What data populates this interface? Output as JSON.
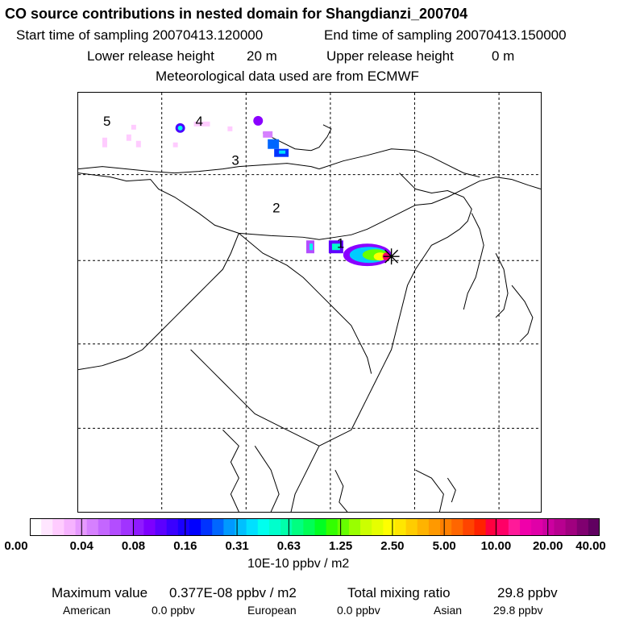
{
  "header": {
    "title": "CO  source contributions in nested domain for Shangdianzi_200704",
    "start_label": "Start time of sampling 20070413.120000",
    "end_label": "End time of sampling 20070413.150000",
    "lower_label": "Lower release height",
    "lower_value": "20 m",
    "upper_label": "Upper release height",
    "upper_value": "0 m",
    "met_label": "Meteorological data used are from ECMWF"
  },
  "map": {
    "region_labels": [
      "1",
      "2",
      "3",
      "4",
      "5"
    ],
    "receptor_marker": "star-cross"
  },
  "colorbar": {
    "ticks": [
      "0.00",
      "0.04",
      "0.08",
      "0.16",
      "0.31",
      "0.63",
      "1.25",
      "2.50",
      "5.00",
      "10.00",
      "20.00",
      "40.00"
    ],
    "unit": "10E-10 ppbv / m2",
    "colors": [
      "#ffffff",
      "#ffe6ff",
      "#ffccff",
      "#f6b3ff",
      "#e699ff",
      "#d680ff",
      "#c466ff",
      "#b34dff",
      "#a133ff",
      "#8f1aff",
      "#7d00ff",
      "#5c00ff",
      "#3a00ff",
      "#1a00ff",
      "#0000ff",
      "#0033ff",
      "#0066ff",
      "#0099ff",
      "#00c0ff",
      "#00e0ff",
      "#00ffee",
      "#00ffcc",
      "#00ffaa",
      "#00ff80",
      "#00ff55",
      "#00ff22",
      "#33ff00",
      "#66ff00",
      "#99ff00",
      "#ccff00",
      "#e6ff00",
      "#ffff00",
      "#ffe600",
      "#ffcc00",
      "#ffb300",
      "#ff9900",
      "#ff8000",
      "#ff6600",
      "#ff4400",
      "#ff2200",
      "#ff0040",
      "#ff0066",
      "#ff1a99",
      "#f000aa",
      "#e000a8",
      "#cc00a0",
      "#b80090",
      "#a0007f",
      "#800070",
      "#600060"
    ]
  },
  "summary": {
    "max_label": "Maximum value",
    "max_value": "0.377E-08 ppbv / m2",
    "total_label": "Total mixing ratio",
    "total_value": "29.8 ppbv",
    "american_label": "American",
    "american_value": "0.0 ppbv",
    "european_label": "European",
    "european_value": "0.0 ppbv",
    "asian_label": "Asian",
    "asian_value": "29.8 ppbv"
  }
}
